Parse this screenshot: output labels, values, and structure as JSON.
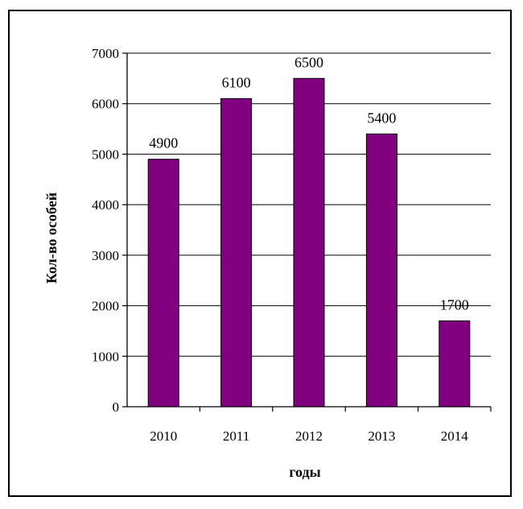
{
  "chart_data": {
    "type": "bar",
    "categories": [
      "2010",
      "2011",
      "2012",
      "2013",
      "2014"
    ],
    "values": [
      4900,
      6100,
      6500,
      5400,
      1700
    ],
    "data_labels": [
      "4900",
      "6100",
      "6500",
      "5400",
      "1700"
    ],
    "xlabel": "годы",
    "ylabel": "Кол-во особей",
    "ylim": [
      0,
      7000
    ],
    "yticks": [
      "0",
      "1000",
      "2000",
      "3000",
      "4000",
      "5000",
      "6000",
      "7000"
    ],
    "grid": true,
    "bar_color": "#800080"
  }
}
